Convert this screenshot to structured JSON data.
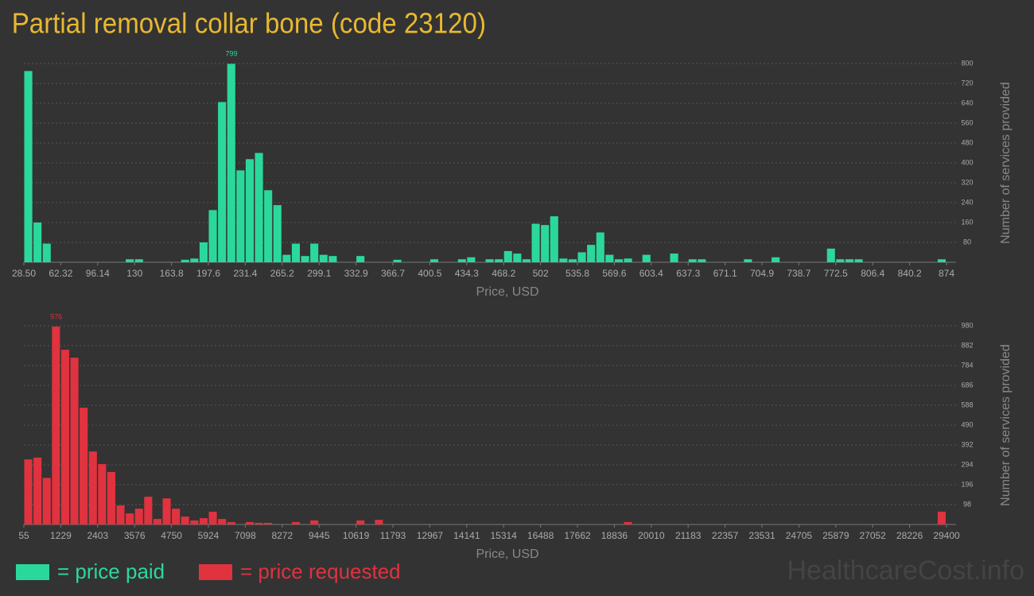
{
  "title": "Partial removal collar bone (code 23120)",
  "watermark": "HealthcareCost.info",
  "chart_data": [
    {
      "type": "histogram",
      "x_label": "Price, USD",
      "y_label": "Number of services provided",
      "bins": [
        28.5,
        36.955,
        45.41,
        53.865,
        62.32,
        70.775,
        79.23,
        87.685,
        96.14,
        104.595,
        113.05,
        121.505,
        129.96,
        138.415,
        146.87,
        155.325,
        163.78,
        172.235,
        180.69,
        189.145,
        197.6,
        206.055,
        214.51,
        222.965,
        231.42,
        239.875,
        248.33,
        256.785,
        265.24,
        273.695,
        282.15,
        290.605,
        299.06,
        307.515,
        315.97,
        324.425,
        332.88,
        341.335,
        349.79,
        358.245,
        366.7,
        375.155,
        383.61,
        392.065,
        400.52,
        408.975,
        417.43,
        425.885,
        434.34,
        442.795,
        451.25,
        459.705,
        468.16,
        476.615,
        485.07,
        493.525,
        501.98,
        510.435,
        518.89,
        527.345,
        535.8,
        544.255,
        552.71,
        561.165,
        569.62,
        578.075,
        586.53,
        594.985,
        603.44,
        611.895,
        620.35,
        628.805,
        637.26,
        645.715,
        654.17,
        662.625,
        671.08,
        679.535,
        687.99,
        696.445,
        704.9,
        713.355,
        721.81,
        730.265,
        738.72,
        747.175,
        755.63,
        764.085,
        772.54,
        780.995,
        789.45,
        797.905,
        806.36,
        814.815,
        823.27,
        831.725,
        840.18,
        848.635,
        857.09,
        865.545,
        874
      ],
      "series": [
        {
          "name": "= price paid",
          "color": "#2bd89b",
          "values": [
            770,
            160,
            75,
            0,
            0,
            0,
            0,
            0,
            0,
            0,
            0,
            12,
            12,
            0,
            0,
            0,
            0,
            10,
            15,
            80,
            210,
            645,
            799,
            370,
            415,
            440,
            290,
            230,
            30,
            75,
            25,
            75,
            30,
            25,
            0,
            0,
            25,
            0,
            0,
            0,
            10,
            0,
            0,
            0,
            12,
            0,
            0,
            12,
            20,
            0,
            12,
            12,
            45,
            35,
            12,
            155,
            150,
            185,
            15,
            12,
            40,
            70,
            120,
            30,
            12,
            15,
            0,
            30,
            0,
            0,
            35,
            0,
            12,
            12,
            0,
            0,
            0,
            0,
            12,
            0,
            0,
            20,
            0,
            0,
            0,
            0,
            0,
            55,
            12,
            12,
            12,
            0,
            0,
            0,
            0,
            0,
            0,
            0,
            0,
            12
          ]
        }
      ],
      "xlim": [
        28.5,
        874
      ],
      "xticks": [
        {
          "value": 28.5,
          "label": "28.50"
        },
        62.32,
        96.14,
        130,
        163.8,
        197.6,
        231.4,
        265.2,
        299.1,
        332.9,
        366.7,
        400.5,
        434.3,
        468.2,
        502,
        535.8,
        569.6,
        603.4,
        637.3,
        671.1,
        704.9,
        738.7,
        772.5,
        806.4,
        840.2,
        874
      ],
      "ylim": [
        0,
        800
      ],
      "yticks": [
        80,
        160,
        240,
        320,
        400,
        480,
        560,
        640,
        720,
        800
      ],
      "grid": true,
      "label_max": true
    },
    {
      "type": "histogram",
      "x_label": "Price, USD",
      "y_label": "Number of services provided",
      "bins": [
        55,
        348.45,
        641.9,
        935.35,
        1228.8,
        1522.25,
        1815.7,
        2109.15,
        2402.6,
        2696.05,
        2989.5,
        3282.95,
        3576.4,
        3869.85,
        4163.3,
        4456.75,
        4750.2,
        5043.65,
        5337.1,
        5630.55,
        5924,
        6217.45,
        6510.9,
        6804.35,
        7097.8,
        7391.25,
        7684.7,
        7978.15,
        8271.6,
        8565.05,
        8858.5,
        9151.95,
        9445.4,
        9738.85,
        10032.3,
        10325.75,
        10619.2,
        10912.65,
        11206.1,
        11499.55,
        11793,
        12086.45,
        12379.9,
        12673.35,
        12966.8,
        13260.25,
        13553.7,
        13847.15,
        14140.6,
        14434.05,
        14727.5,
        15020.95,
        15314.4,
        15607.85,
        15901.3,
        16194.75,
        16488.2,
        16781.65,
        17075.1,
        17368.55,
        17662,
        17955.45,
        18248.9,
        18542.35,
        18835.8,
        19129.25,
        19422.7,
        19716.15,
        20009.6,
        20303.05,
        20596.5,
        20889.95,
        21183.4,
        21476.85,
        21770.3,
        22063.75,
        22357.2,
        22650.65,
        22944.1,
        23237.55,
        23531,
        23824.45,
        24117.9,
        24411.35,
        24704.8,
        24998.25,
        25291.7,
        25585.15,
        25878.6,
        26172.05,
        26465.5,
        26758.95,
        27052.4,
        27345.85,
        27639.3,
        27932.75,
        28226.2,
        28519.65,
        28813.1,
        29106.55,
        29400
      ],
      "series": [
        {
          "name": "= price requested",
          "color": "#e0323f",
          "values": [
            321,
            330,
            230,
            976,
            862,
            823,
            576,
            360,
            298,
            259,
            94,
            55,
            78,
            137,
            27,
            129,
            78,
            39,
            20,
            31,
            63,
            27,
            12,
            0,
            12,
            8,
            8,
            0,
            0,
            12,
            0,
            20,
            0,
            0,
            0,
            0,
            20,
            0,
            23,
            0,
            0,
            0,
            0,
            0,
            0,
            0,
            0,
            0,
            0,
            0,
            0,
            0,
            0,
            0,
            0,
            0,
            0,
            0,
            0,
            0,
            0,
            0,
            0,
            0,
            0,
            12,
            0,
            0,
            0,
            0,
            0,
            0,
            0,
            0,
            0,
            0,
            0,
            0,
            0,
            0,
            0,
            0,
            0,
            0,
            0,
            0,
            0,
            0,
            0,
            0,
            0,
            0,
            0,
            0,
            0,
            0,
            0,
            0,
            0,
            63
          ]
        }
      ],
      "xlim": [
        55,
        29400
      ],
      "xticks": [
        55,
        1229,
        2403,
        3576,
        4750,
        5924,
        7098,
        8272,
        9445,
        10619,
        11793,
        12967,
        14141,
        15314,
        16488,
        17662,
        18836,
        20010,
        21183,
        22357,
        23531,
        24705,
        25879,
        27052,
        28226,
        29400
      ],
      "ylim": [
        0,
        980
      ],
      "yticks": [
        98,
        196,
        294,
        392,
        490,
        588,
        686,
        784,
        882,
        980
      ],
      "grid": true,
      "label_max": true
    }
  ]
}
